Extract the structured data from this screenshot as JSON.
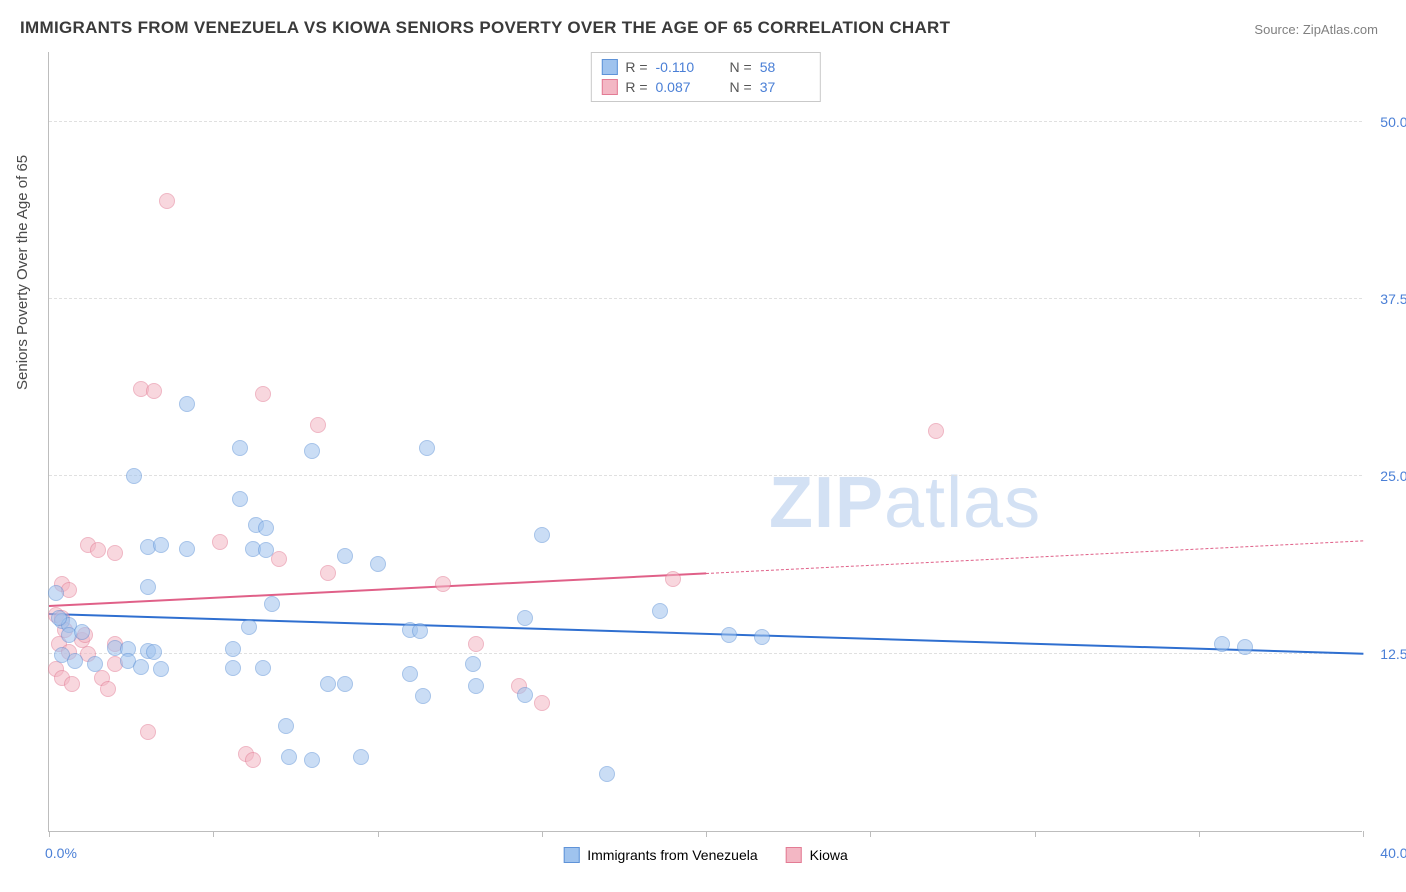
{
  "title": "IMMIGRANTS FROM VENEZUELA VS KIOWA SENIORS POVERTY OVER THE AGE OF 65 CORRELATION CHART",
  "source_label": "Source:",
  "source_value": "ZipAtlas.com",
  "y_axis_title": "Seniors Poverty Over the Age of 65",
  "watermark_a": "ZIP",
  "watermark_b": "atlas",
  "chart": {
    "type": "scatter",
    "xlim": [
      0,
      40
    ],
    "ylim": [
      0,
      55
    ],
    "x_tick_positions": [
      0,
      5,
      10,
      15,
      20,
      25,
      30,
      35,
      40
    ],
    "x_label_min": "0.0%",
    "x_label_max": "40.0%",
    "y_gridlines": [
      {
        "value": 12.5,
        "label": "12.5%"
      },
      {
        "value": 25.0,
        "label": "25.0%"
      },
      {
        "value": 37.5,
        "label": "37.5%"
      },
      {
        "value": 50.0,
        "label": "50.0%"
      }
    ],
    "background_color": "#ffffff",
    "grid_color": "#e0e0e0",
    "axis_color": "#bdbdbd",
    "tick_label_color": "#4a7fd6",
    "marker_radius": 8,
    "marker_opacity": 0.55,
    "series": [
      {
        "name": "Immigrants from Venezuela",
        "fill_color": "#9fc3ee",
        "stroke_color": "#5f93d8",
        "trend_color": "#2f6fd0",
        "r_label": "R =",
        "r_value": "-0.110",
        "n_label": "N =",
        "n_value": "58",
        "trend": {
          "x0": 0,
          "y0": 15.2,
          "x1_solid": 40,
          "y1_solid": 12.4,
          "x1_dashed": 40,
          "y1_dashed": 12.4
        },
        "points": [
          [
            4.2,
            30.1
          ],
          [
            5.8,
            27.0
          ],
          [
            8.0,
            26.8
          ],
          [
            11.5,
            27.0
          ],
          [
            2.6,
            25.0
          ],
          [
            5.8,
            23.4
          ],
          [
            6.3,
            21.6
          ],
          [
            6.6,
            21.4
          ],
          [
            15.0,
            20.9
          ],
          [
            3.0,
            20.0
          ],
          [
            3.4,
            20.2
          ],
          [
            4.2,
            19.9
          ],
          [
            6.2,
            19.9
          ],
          [
            6.6,
            19.8
          ],
          [
            9.0,
            19.4
          ],
          [
            10.0,
            18.8
          ],
          [
            3.0,
            17.2
          ],
          [
            6.8,
            16.0
          ],
          [
            0.4,
            14.8
          ],
          [
            0.6,
            14.5
          ],
          [
            11.0,
            14.2
          ],
          [
            11.3,
            14.1
          ],
          [
            14.5,
            15.0
          ],
          [
            18.6,
            15.5
          ],
          [
            20.7,
            13.8
          ],
          [
            21.7,
            13.7
          ],
          [
            35.7,
            13.2
          ],
          [
            36.4,
            13.0
          ],
          [
            2.0,
            12.9
          ],
          [
            2.4,
            12.8
          ],
          [
            3.0,
            12.7
          ],
          [
            3.2,
            12.6
          ],
          [
            5.6,
            12.8
          ],
          [
            0.4,
            12.4
          ],
          [
            0.8,
            12.0
          ],
          [
            1.4,
            11.8
          ],
          [
            2.4,
            12.0
          ],
          [
            2.8,
            11.6
          ],
          [
            3.4,
            11.4
          ],
          [
            5.6,
            11.5
          ],
          [
            6.5,
            11.5
          ],
          [
            8.5,
            10.4
          ],
          [
            9.0,
            10.4
          ],
          [
            11.4,
            9.5
          ],
          [
            13.0,
            10.2
          ],
          [
            14.5,
            9.6
          ],
          [
            7.2,
            7.4
          ],
          [
            7.3,
            5.2
          ],
          [
            8.0,
            5.0
          ],
          [
            9.5,
            5.2
          ],
          [
            17.0,
            4.0
          ],
          [
            12.9,
            11.8
          ],
          [
            11.0,
            11.1
          ],
          [
            6.1,
            14.4
          ],
          [
            0.6,
            13.8
          ],
          [
            1.0,
            14.0
          ],
          [
            0.2,
            16.8
          ],
          [
            0.3,
            15.0
          ]
        ]
      },
      {
        "name": "Kiowa",
        "fill_color": "#f3b7c4",
        "stroke_color": "#e37b94",
        "trend_color": "#e06088",
        "r_label": "R =",
        "r_value": "0.087",
        "n_label": "N =",
        "n_value": "37",
        "trend": {
          "x0": 0,
          "y0": 15.8,
          "x1_solid": 20,
          "y1_solid": 18.1,
          "x1_dashed": 40,
          "y1_dashed": 20.4
        },
        "points": [
          [
            3.6,
            44.4
          ],
          [
            2.8,
            31.2
          ],
          [
            3.2,
            31.0
          ],
          [
            6.5,
            30.8
          ],
          [
            8.2,
            28.6
          ],
          [
            27.0,
            28.2
          ],
          [
            1.2,
            20.2
          ],
          [
            1.5,
            19.8
          ],
          [
            2.0,
            19.6
          ],
          [
            0.4,
            17.4
          ],
          [
            0.6,
            17.0
          ],
          [
            5.2,
            20.4
          ],
          [
            7.0,
            19.2
          ],
          [
            8.5,
            18.2
          ],
          [
            12.0,
            17.4
          ],
          [
            19.0,
            17.8
          ],
          [
            0.2,
            15.2
          ],
          [
            0.4,
            15.0
          ],
          [
            0.5,
            14.2
          ],
          [
            1.0,
            13.5
          ],
          [
            1.2,
            12.5
          ],
          [
            2.0,
            11.8
          ],
          [
            0.2,
            11.4
          ],
          [
            0.4,
            10.8
          ],
          [
            0.7,
            10.4
          ],
          [
            1.6,
            10.8
          ],
          [
            1.8,
            10.0
          ],
          [
            3.0,
            7.0
          ],
          [
            6.0,
            5.4
          ],
          [
            6.2,
            5.0
          ],
          [
            14.3,
            10.2
          ],
          [
            15.0,
            9.0
          ],
          [
            13.0,
            13.2
          ],
          [
            1.1,
            13.8
          ],
          [
            0.3,
            13.2
          ],
          [
            0.6,
            12.6
          ],
          [
            2.0,
            13.2
          ]
        ]
      }
    ]
  }
}
